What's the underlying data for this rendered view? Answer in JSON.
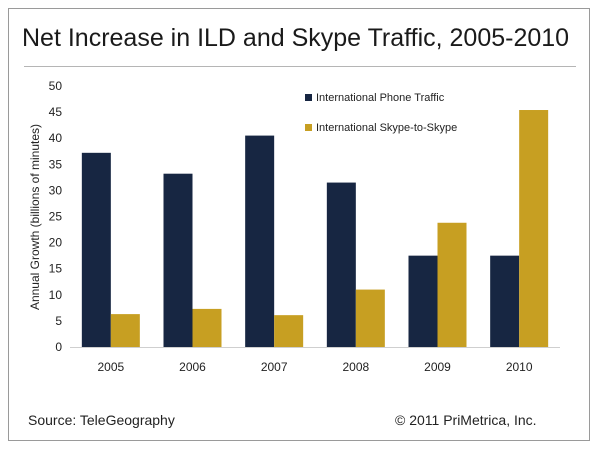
{
  "chart_data": {
    "type": "bar",
    "title": "Net Increase in ILD and Skype Traffic, 2005-2010",
    "ylabel": "Annual Growth (billions of minutes)",
    "xlabel": "",
    "categories": [
      "2005",
      "2006",
      "2007",
      "2008",
      "2009",
      "2010"
    ],
    "ylim": [
      0,
      50
    ],
    "yticks": [
      0,
      5,
      10,
      15,
      20,
      25,
      30,
      35,
      40,
      45,
      50
    ],
    "grid": false,
    "legend_position": "top-right",
    "series": [
      {
        "name": "International Phone Traffic",
        "color": "#172642",
        "values": [
          37.2,
          33.2,
          40.5,
          31.5,
          17.5,
          17.5
        ]
      },
      {
        "name": "International Skype-to-Skype",
        "color": "#c79f22",
        "values": [
          6.3,
          7.3,
          6.1,
          11.0,
          23.8,
          45.4
        ]
      }
    ]
  },
  "footer": {
    "source": "Source: TeleGeography",
    "copyright": "© 2011 PriMetrica, Inc."
  }
}
